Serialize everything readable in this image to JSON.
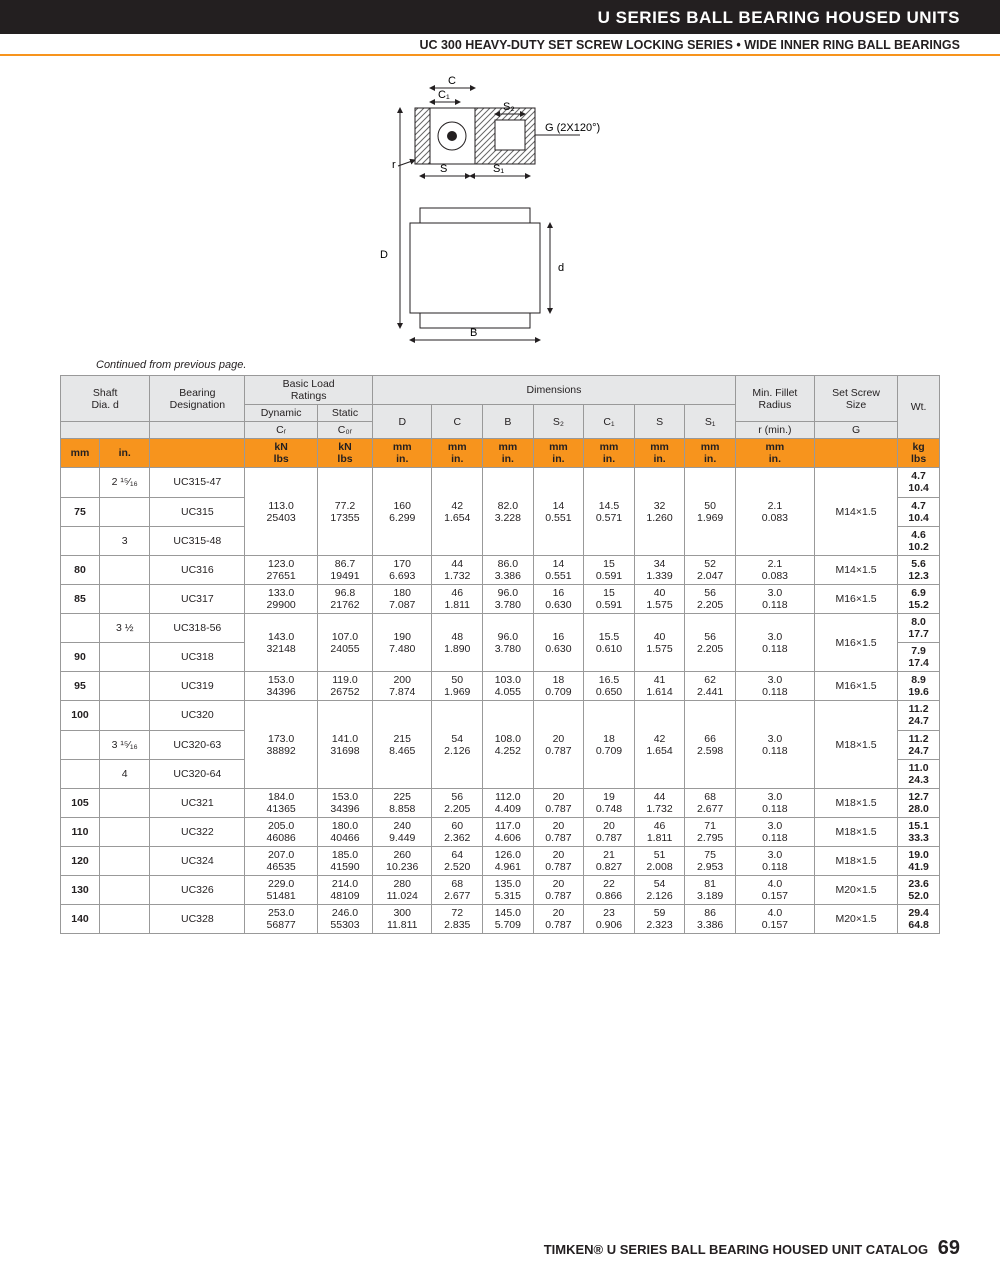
{
  "header": {
    "title": "U SERIES BALL BEARING HOUSED UNITS",
    "subtitle": "UC 300 HEAVY-DUTY SET SCREW LOCKING SERIES • WIDE INNER RING BALL BEARINGS"
  },
  "continued": "Continued from previous page.",
  "diagram_labels": {
    "C": "C",
    "C1": "C₁",
    "S2": "S₂",
    "G": "G (2X120°)",
    "r": "r",
    "S": "S",
    "S1": "S₁",
    "D": "D",
    "d": "d",
    "B": "B"
  },
  "thead": {
    "shaft": "Shaft\nDia. d",
    "bearing": "Bearing\nDesignation",
    "load": "Basic Load\nRatings",
    "dyn": "Dynamic",
    "stat": "Static",
    "cr": "Cᵣ",
    "c0r": "C₀ᵣ",
    "dims": "Dimensions",
    "D": "D",
    "C": "C",
    "B": "B",
    "S2": "S₂",
    "C1": "C₁",
    "S": "S",
    "S1": "S₁",
    "fillet": "Min. Fillet\nRadius",
    "rmin": "r (min.)",
    "screw": "Set Screw\nSize",
    "G": "G",
    "wt": "Wt."
  },
  "units": {
    "mm": "mm",
    "in": "in.",
    "kn": "kN",
    "lbs": "lbs",
    "kg": "kg"
  },
  "rows": [
    {
      "mm": "",
      "in": "2 ¹⁵⁄₁₆",
      "desig": "UC315-47",
      "cr": "",
      "c0r": "",
      "D": "",
      "C": "",
      "B": "",
      "S2": "",
      "C1": "",
      "S": "",
      "S1": "",
      "r": "",
      "G": "",
      "wt": "4.7\n10.4",
      "share": "top"
    },
    {
      "mm": "75",
      "in": "",
      "desig": "UC315",
      "cr": "113.0\n25403",
      "c0r": "77.2\n17355",
      "D": "160\n6.299",
      "C": "42\n1.654",
      "B": "82.0\n3.228",
      "S2": "14\n0.551",
      "C1": "14.5\n0.571",
      "S": "32\n1.260",
      "S1": "50\n1.969",
      "r": "2.1\n0.083",
      "G": "M14×1.5",
      "wt": "4.7\n10.4",
      "share": "mid"
    },
    {
      "mm": "",
      "in": "3",
      "desig": "UC315-48",
      "cr": "",
      "c0r": "",
      "D": "",
      "C": "",
      "B": "",
      "S2": "",
      "C1": "",
      "S": "",
      "S1": "",
      "r": "",
      "G": "",
      "wt": "4.6\n10.2",
      "share": "bot"
    },
    {
      "mm": "80",
      "in": "",
      "desig": "UC316",
      "cr": "123.0\n27651",
      "c0r": "86.7\n19491",
      "D": "170\n6.693",
      "C": "44\n1.732",
      "B": "86.0\n3.386",
      "S2": "14\n0.551",
      "C1": "15\n0.591",
      "S": "34\n1.339",
      "S1": "52\n2.047",
      "r": "2.1\n0.083",
      "G": "M14×1.5",
      "wt": "5.6\n12.3"
    },
    {
      "mm": "85",
      "in": "",
      "desig": "UC317",
      "cr": "133.0\n29900",
      "c0r": "96.8\n21762",
      "D": "180\n7.087",
      "C": "46\n1.811",
      "B": "96.0\n3.780",
      "S2": "16\n0.630",
      "C1": "15\n0.591",
      "S": "40\n1.575",
      "S1": "56\n2.205",
      "r": "3.0\n0.118",
      "G": "M16×1.5",
      "wt": "6.9\n15.2"
    },
    {
      "mm": "",
      "in": "3 ½",
      "desig": "UC318-56",
      "cr": "143.0\n32148",
      "c0r": "107.0\n24055",
      "D": "190\n7.480",
      "C": "48\n1.890",
      "B": "96.0\n3.780",
      "S2": "16\n0.630",
      "C1": "15.5\n0.610",
      "S": "40\n1.575",
      "S1": "56\n2.205",
      "r": "3.0\n0.118",
      "G": "M16×1.5",
      "wt": "8.0\n17.7",
      "rowspan2": true
    },
    {
      "mm": "90",
      "in": "",
      "desig": "UC318",
      "wt": "7.9\n17.4",
      "tail": true
    },
    {
      "mm": "95",
      "in": "",
      "desig": "UC319",
      "cr": "153.0\n34396",
      "c0r": "119.0\n26752",
      "D": "200\n7.874",
      "C": "50\n1.969",
      "B": "103.0\n4.055",
      "S2": "18\n0.709",
      "C1": "16.5\n0.650",
      "S": "41\n1.614",
      "S1": "62\n2.441",
      "r": "3.0\n0.118",
      "G": "M16×1.5",
      "wt": "8.9\n19.6"
    },
    {
      "mm": "100",
      "in": "",
      "desig": "UC320",
      "cr": "",
      "c0r": "",
      "D": "",
      "C": "",
      "B": "",
      "S2": "",
      "C1": "",
      "S": "",
      "S1": "",
      "r": "",
      "G": "",
      "wt": "11.2\n24.7",
      "share": "top"
    },
    {
      "mm": "",
      "in": "3 ¹⁵⁄₁₆",
      "desig": "UC320-63",
      "cr": "173.0\n38892",
      "c0r": "141.0\n31698",
      "D": "215\n8.465",
      "C": "54\n2.126",
      "B": "108.0\n4.252",
      "S2": "20\n0.787",
      "C1": "18\n0.709",
      "S": "42\n1.654",
      "S1": "66\n2.598",
      "r": "3.0\n0.118",
      "G": "M18×1.5",
      "wt": "11.2\n24.7",
      "share": "mid"
    },
    {
      "mm": "",
      "in": "4",
      "desig": "UC320-64",
      "cr": "",
      "c0r": "",
      "D": "",
      "C": "",
      "B": "",
      "S2": "",
      "C1": "",
      "S": "",
      "S1": "",
      "r": "",
      "G": "",
      "wt": "11.0\n24.3",
      "share": "bot"
    },
    {
      "mm": "105",
      "in": "",
      "desig": "UC321",
      "cr": "184.0\n41365",
      "c0r": "153.0\n34396",
      "D": "225\n8.858",
      "C": "56\n2.205",
      "B": "112.0\n4.409",
      "S2": "20\n0.787",
      "C1": "19\n0.748",
      "S": "44\n1.732",
      "S1": "68\n2.677",
      "r": "3.0\n0.118",
      "G": "M18×1.5",
      "wt": "12.7\n28.0"
    },
    {
      "mm": "110",
      "in": "",
      "desig": "UC322",
      "cr": "205.0\n46086",
      "c0r": "180.0\n40466",
      "D": "240\n9.449",
      "C": "60\n2.362",
      "B": "117.0\n4.606",
      "S2": "20\n0.787",
      "C1": "20\n0.787",
      "S": "46\n1.811",
      "S1": "71\n2.795",
      "r": "3.0\n0.118",
      "G": "M18×1.5",
      "wt": "15.1\n33.3"
    },
    {
      "mm": "120",
      "in": "",
      "desig": "UC324",
      "cr": "207.0\n46535",
      "c0r": "185.0\n41590",
      "D": "260\n10.236",
      "C": "64\n2.520",
      "B": "126.0\n4.961",
      "S2": "20\n0.787",
      "C1": "21\n0.827",
      "S": "51\n2.008",
      "S1": "75\n2.953",
      "r": "3.0\n0.118",
      "G": "M18×1.5",
      "wt": "19.0\n41.9"
    },
    {
      "mm": "130",
      "in": "",
      "desig": "UC326",
      "cr": "229.0\n51481",
      "c0r": "214.0\n48109",
      "D": "280\n11.024",
      "C": "68\n2.677",
      "B": "135.0\n5.315",
      "S2": "20\n0.787",
      "C1": "22\n0.866",
      "S": "54\n2.126",
      "S1": "81\n3.189",
      "r": "4.0\n0.157",
      "G": "M20×1.5",
      "wt": "23.6\n52.0"
    },
    {
      "mm": "140",
      "in": "",
      "desig": "UC328",
      "cr": "253.0\n56877",
      "c0r": "246.0\n55303",
      "D": "300\n11.811",
      "C": "72\n2.835",
      "B": "145.0\n5.709",
      "S2": "20\n0.787",
      "C1": "23\n0.906",
      "S": "59\n2.323",
      "S1": "86\n3.386",
      "r": "4.0\n0.157",
      "G": "M20×1.5",
      "wt": "29.4\n64.8"
    }
  ],
  "footer": {
    "text": "TIMKEN® U SERIES BALL BEARING HOUSED UNIT CATALOG",
    "page": "69"
  },
  "colors": {
    "orange": "#f7941d",
    "black": "#231f20",
    "grey": "#e6e7e8",
    "hatch": "#999"
  }
}
